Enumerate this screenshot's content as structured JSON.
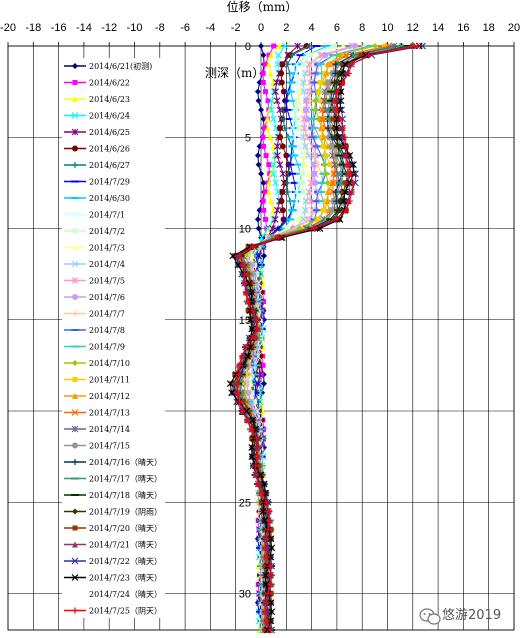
{
  "chart_data": {
    "type": "line",
    "title": "",
    "xlabel": "位移（mm）",
    "ylabel": "测深（m）",
    "xlim": [
      -20,
      20
    ],
    "ylim": [
      0,
      32
    ],
    "y_inverted": true,
    "xticks": [
      "-20",
      "-18",
      "-16",
      "-14",
      "-12",
      "-10",
      "-8",
      "-6",
      "-4",
      "-2",
      "0",
      "2",
      "4",
      "6",
      "8",
      "10",
      "12",
      "14",
      "16",
      "18",
      "20"
    ],
    "yticks": [
      "0",
      "5",
      "10",
      "15",
      "20",
      "25",
      "30"
    ],
    "grid": true,
    "legend_position": "upper-left",
    "depths": [
      0,
      0.5,
      1,
      1.5,
      2,
      2.5,
      3,
      3.5,
      4,
      4.5,
      5,
      5.5,
      6,
      6.5,
      7,
      7.5,
      8,
      8.5,
      9,
      9.5,
      10,
      10.5,
      11,
      11.5,
      12,
      12.5,
      13,
      13.5,
      14,
      14.5,
      15,
      15.5,
      16,
      16.5,
      17,
      17.5,
      18,
      18.5,
      19,
      19.5,
      20,
      20.5,
      21,
      21.5,
      22,
      22.5,
      23,
      23.5,
      24,
      24.5,
      25,
      25.5,
      26,
      26.5,
      27,
      27.5,
      28,
      28.5,
      29,
      29.5,
      30,
      30.5,
      31,
      31.5,
      32
    ],
    "series": [
      {
        "name": "2014/6/21(初测)",
        "color": "#000080",
        "marker": "diamond",
        "kx": 0.0,
        "ky": 0.0
      },
      {
        "name": "2014/6/22",
        "color": "#ff00ff",
        "marker": "square",
        "kx": 0.06,
        "ky": 0.05
      },
      {
        "name": "2014/6/23",
        "color": "#ffff00",
        "marker": "triangle",
        "kx": 0.12,
        "ky": 0.09
      },
      {
        "name": "2014/6/24",
        "color": "#00ffff",
        "marker": "x",
        "kx": 0.17,
        "ky": 0.14
      },
      {
        "name": "2014/6/25",
        "color": "#800080",
        "marker": "star",
        "kx": 0.22,
        "ky": 0.18
      },
      {
        "name": "2014/6/26",
        "color": "#800000",
        "marker": "circle",
        "kx": 0.27,
        "ky": 0.22
      },
      {
        "name": "2014/6/27",
        "color": "#008080",
        "marker": "plus",
        "kx": 0.32,
        "ky": 0.27
      },
      {
        "name": "2014/7/29",
        "color": "#0000ff",
        "marker": "dash",
        "kx": 0.36,
        "ky": 0.31
      },
      {
        "name": "2014/6/30",
        "color": "#00ccff",
        "marker": "dash",
        "kx": 0.4,
        "ky": 0.35
      },
      {
        "name": "2014/7/1",
        "color": "#ccffff",
        "marker": "x",
        "kx": 0.44,
        "ky": 0.39
      },
      {
        "name": "2014/7/2",
        "color": "#ccffcc",
        "marker": "square",
        "kx": 0.48,
        "ky": 0.43
      },
      {
        "name": "2014/7/3",
        "color": "#ffff99",
        "marker": "triangle",
        "kx": 0.52,
        "ky": 0.47
      },
      {
        "name": "2014/7/4",
        "color": "#99ccff",
        "marker": "x",
        "kx": 0.55,
        "ky": 0.51
      },
      {
        "name": "2014/7/5",
        "color": "#ff99cc",
        "marker": "star",
        "kx": 0.58,
        "ky": 0.55
      },
      {
        "name": "2014/7/6",
        "color": "#cc99ff",
        "marker": "circle",
        "kx": 0.61,
        "ky": 0.59
      },
      {
        "name": "2014/7/7",
        "color": "#ffcc99",
        "marker": "plus",
        "kx": 0.64,
        "ky": 0.62
      },
      {
        "name": "2014/7/8",
        "color": "#3366ff",
        "marker": "dash",
        "kx": 0.67,
        "ky": 0.66
      },
      {
        "name": "2014/7/9",
        "color": "#33cccc",
        "marker": "dash",
        "kx": 0.7,
        "ky": 0.69
      },
      {
        "name": "2014/7/10",
        "color": "#99cc00",
        "marker": "diamond",
        "kx": 0.73,
        "ky": 0.72
      },
      {
        "name": "2014/7/11",
        "color": "#ffcc00",
        "marker": "square",
        "kx": 0.76,
        "ky": 0.75
      },
      {
        "name": "2014/7/12",
        "color": "#ff9900",
        "marker": "triangle",
        "kx": 0.79,
        "ky": 0.78
      },
      {
        "name": "2014/7/13",
        "color": "#ff6600",
        "marker": "x",
        "kx": 0.82,
        "ky": 0.81
      },
      {
        "name": "2014/7/14",
        "color": "#666699",
        "marker": "star",
        "kx": 0.84,
        "ky": 0.84
      },
      {
        "name": "2014/7/15",
        "color": "#969696",
        "marker": "circle",
        "kx": 0.86,
        "ky": 0.86
      },
      {
        "name": "2014/7/16（晴天）",
        "color": "#003366",
        "marker": "plus",
        "kx": 0.88,
        "ky": 0.88
      },
      {
        "name": "2014/7/17（晴天）",
        "color": "#339966",
        "marker": "dash",
        "kx": 0.9,
        "ky": 0.9
      },
      {
        "name": "2014/7/18（晴天）",
        "color": "#003300",
        "marker": "dash",
        "kx": 0.92,
        "ky": 0.92
      },
      {
        "name": "2014/7/19（阴雨）",
        "color": "#333300",
        "marker": "diamond",
        "kx": 0.94,
        "ky": 0.94
      },
      {
        "name": "2014/7/20（晴天）",
        "color": "#993300",
        "marker": "square",
        "kx": 0.96,
        "ky": 0.96
      },
      {
        "name": "2014/7/21（晴天）",
        "color": "#993366",
        "marker": "triangle",
        "kx": 0.97,
        "ky": 0.97
      },
      {
        "name": "2014/7/22（晴天）",
        "color": "#333399",
        "marker": "x",
        "kx": 1.0,
        "ky": 0.99
      },
      {
        "name": "2014/7/23（晴天）",
        "color": "#000000",
        "marker": "x",
        "kx": 0.98,
        "ky": 1.0
      },
      {
        "name": "2014/7/24（晴天）",
        "color": "#ffffff",
        "marker": "none",
        "kx": 0.99,
        "ky": 1.0
      },
      {
        "name": "2014/7/25（阴天）",
        "color": "#ff0000",
        "marker": "plus",
        "kx": 0.99,
        "ky": 0.98
      }
    ],
    "profile_top_x": [
      12.6,
      8.5,
      7.0,
      6.8,
      6.5,
      6.3,
      6.2,
      6.2,
      6.2,
      6.3,
      6.5,
      6.8,
      7.0,
      7.2,
      7.3,
      7.2,
      7.0,
      6.9,
      6.8,
      6.2,
      4.5,
      2.5,
      1.0,
      0,
      0,
      0,
      0,
      0,
      0,
      0,
      0,
      0,
      0,
      0,
      0,
      0,
      0,
      0,
      0,
      0,
      0,
      0,
      0,
      0,
      0,
      0,
      0,
      0,
      0,
      0,
      0,
      0,
      0,
      0,
      0,
      0,
      0,
      0,
      0,
      0,
      0,
      0,
      0,
      0,
      0
    ],
    "profile_bottom_x": [
      0,
      0,
      0,
      0,
      0,
      0,
      0,
      0,
      0,
      0,
      0,
      0,
      0,
      0,
      0,
      0,
      0,
      0,
      0,
      0,
      0,
      -1.0,
      -1.8,
      -2.0,
      -1.6,
      -1.3,
      -1.1,
      -1.0,
      -0.9,
      -0.8,
      -0.6,
      -0.5,
      -0.7,
      -1.0,
      -1.3,
      -1.6,
      -1.9,
      -2.2,
      -2.1,
      -1.7,
      -1.3,
      -0.9,
      -0.6,
      -0.5,
      -0.5,
      -0.5,
      -0.4,
      -0.2,
      0,
      0.2,
      0.3,
      0.4,
      0.5,
      0.6,
      0.6,
      0.6,
      0.6,
      0.6,
      0.6,
      0.6,
      0.6,
      0.6,
      0.6,
      0.6,
      0.6
    ]
  },
  "watermark": {
    "text": "悠游2019",
    "icon": "wechat-icon"
  }
}
